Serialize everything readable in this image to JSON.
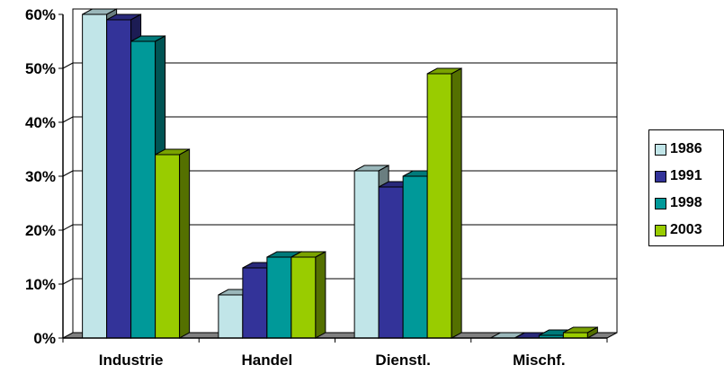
{
  "chart_data": {
    "type": "bar",
    "categories": [
      "Industrie",
      "Handel",
      "Dienstl.",
      "Mischf."
    ],
    "series": [
      {
        "name": "1986",
        "values": [
          60,
          8,
          31,
          0
        ],
        "color": "#C1E5E8"
      },
      {
        "name": "1991",
        "values": [
          59,
          13,
          28,
          0
        ],
        "color": "#333399"
      },
      {
        "name": "1998",
        "values": [
          55,
          15,
          30,
          0.5
        ],
        "color": "#009999"
      },
      {
        "name": "2003",
        "values": [
          34,
          15,
          49,
          1
        ],
        "color": "#99CC00"
      }
    ],
    "yticks": [
      "0%",
      "10%",
      "20%",
      "30%",
      "40%",
      "50%",
      "60%"
    ],
    "ylim": [
      0,
      60
    ],
    "grid": true,
    "legend_position": "right",
    "three_d": true
  }
}
